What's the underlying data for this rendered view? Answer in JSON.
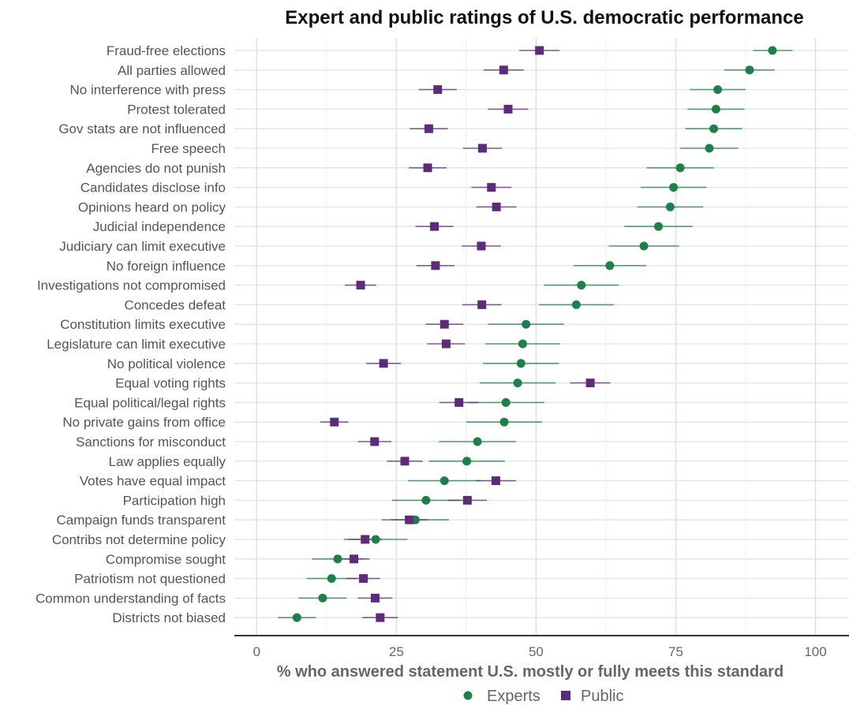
{
  "chart_data": {
    "type": "scatter",
    "title": "Expert and public ratings of U.S. democratic performance",
    "xlabel": "% who answered statement U.S. mostly or fully meets this standard",
    "ylabel": "",
    "xlim": [
      -4,
      106
    ],
    "x_ticks": [
      0,
      25,
      50,
      75,
      100
    ],
    "grid": true,
    "legend_position": "bottom",
    "categories": [
      "Fraud-free elections",
      "All parties allowed",
      "No interference with press",
      "Protest tolerated",
      "Gov stats are not influenced",
      "Free speech",
      "Agencies do not punish",
      "Candidates disclose info",
      "Opinions heard on policy",
      "Judicial independence",
      "Judiciary can limit executive",
      "No foreign influence",
      "Investigations not compromised",
      "Concedes defeat",
      "Constitution limits executive",
      "Legislature can limit executive",
      "No political violence",
      "Equal voting rights",
      "Equal political/legal rights",
      "No private gains from office",
      "Sanctions for misconduct",
      "Law applies equally",
      "Votes have equal impact",
      "Participation high",
      "Campaign funds transparent",
      "Contribs not determine policy",
      "Compromise sought",
      "Patriotism not questioned",
      "Common understanding of facts",
      "Districts not biased"
    ],
    "series": [
      {
        "name": "Experts",
        "color": "#1f7f4a",
        "marker": "circle",
        "values": [
          92.3,
          88.2,
          82.5,
          82.2,
          81.8,
          81.0,
          75.8,
          74.6,
          74.0,
          71.9,
          69.3,
          63.2,
          58.1,
          57.2,
          48.2,
          47.6,
          47.3,
          46.7,
          44.6,
          44.3,
          39.5,
          37.6,
          33.6,
          30.3,
          28.4,
          21.3,
          14.5,
          13.4,
          11.8,
          7.2
        ],
        "lower": [
          88.8,
          83.7,
          77.5,
          77.1,
          76.7,
          75.8,
          69.8,
          68.7,
          68.1,
          65.8,
          63.0,
          56.7,
          51.4,
          50.5,
          41.4,
          40.9,
          40.5,
          39.9,
          37.7,
          37.5,
          32.6,
          30.8,
          27.1,
          24.2,
          22.4,
          15.6,
          9.9,
          8.9,
          7.5,
          3.8
        ],
        "upper": [
          95.9,
          92.7,
          87.5,
          87.3,
          86.9,
          86.2,
          81.8,
          80.5,
          79.9,
          78.0,
          75.6,
          69.7,
          64.8,
          63.9,
          55.0,
          54.3,
          54.1,
          53.5,
          51.5,
          51.1,
          46.4,
          44.4,
          40.1,
          36.4,
          34.4,
          27.0,
          19.1,
          17.9,
          16.1,
          10.6
        ]
      },
      {
        "name": "Public",
        "color": "#5e2b7a",
        "marker": "square",
        "values": [
          50.6,
          44.2,
          32.4,
          45.0,
          30.8,
          40.4,
          30.6,
          42.0,
          42.9,
          31.8,
          40.2,
          32.0,
          18.6,
          40.3,
          33.6,
          33.9,
          22.7,
          59.7,
          36.2,
          13.9,
          21.1,
          26.5,
          42.8,
          37.7,
          27.3,
          19.4,
          17.4,
          19.1,
          21.2,
          22.1
        ],
        "lower": [
          47.0,
          40.6,
          29.0,
          41.4,
          27.4,
          36.9,
          27.2,
          38.4,
          39.3,
          28.4,
          36.7,
          28.6,
          15.8,
          36.8,
          30.2,
          30.5,
          19.6,
          56.1,
          32.7,
          11.4,
          18.1,
          23.3,
          39.2,
          34.2,
          24.0,
          16.4,
          14.6,
          16.1,
          18.1,
          18.9
        ],
        "upper": [
          54.2,
          47.8,
          35.8,
          48.6,
          34.2,
          43.9,
          34.0,
          45.6,
          46.5,
          35.2,
          43.7,
          35.4,
          21.4,
          43.8,
          37.0,
          37.3,
          25.8,
          63.3,
          39.7,
          16.4,
          24.1,
          29.7,
          46.4,
          41.2,
          30.6,
          22.4,
          20.2,
          22.1,
          24.3,
          25.3
        ]
      }
    ]
  }
}
